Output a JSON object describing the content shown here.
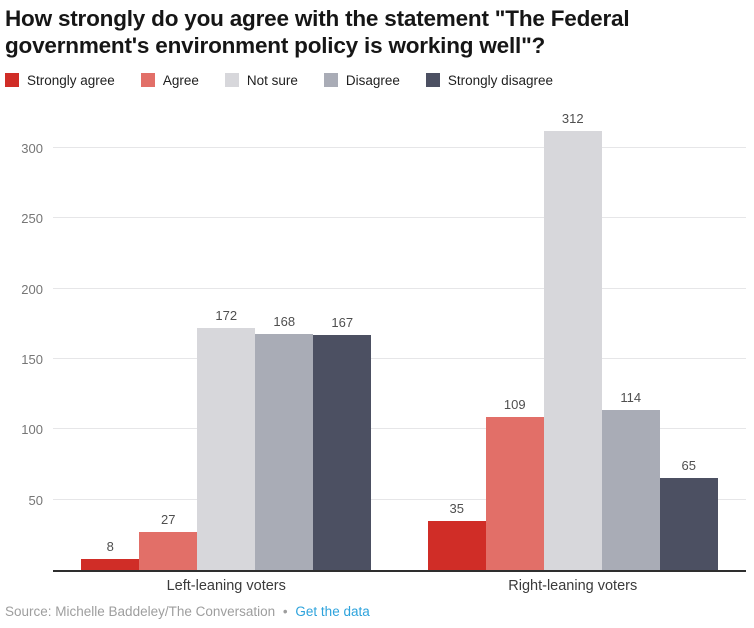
{
  "title": "How strongly do you agree with the statement \"The Federal government's environment policy is working well\"?",
  "legend": {
    "items": [
      {
        "label": "Strongly agree",
        "color": "#d02d27"
      },
      {
        "label": "Agree",
        "color": "#e26f68"
      },
      {
        "label": "Not sure",
        "color": "#d7d7db"
      },
      {
        "label": "Disagree",
        "color": "#a9acb6"
      },
      {
        "label": "Strongly disagree",
        "color": "#4c5062"
      }
    ]
  },
  "chart_data": {
    "type": "bar",
    "title": "How strongly do you agree with the statement \"The Federal government's environment policy is working well\"?",
    "categories": [
      "Left-leaning voters",
      "Right-leaning voters"
    ],
    "series": [
      {
        "name": "Strongly agree",
        "color": "#d02d27",
        "values": [
          8,
          35
        ]
      },
      {
        "name": "Agree",
        "color": "#e26f68",
        "values": [
          27,
          109
        ]
      },
      {
        "name": "Not sure",
        "color": "#d7d7db",
        "values": [
          172,
          312
        ]
      },
      {
        "name": "Disagree",
        "color": "#a9acb6",
        "values": [
          168,
          114
        ]
      },
      {
        "name": "Strongly disagree",
        "color": "#4c5062",
        "values": [
          167,
          65
        ]
      }
    ],
    "xlabel": "",
    "ylabel": "",
    "ylim": [
      0,
      330
    ],
    "yticks": [
      50,
      100,
      150,
      200,
      250,
      300
    ],
    "grid": "horizontal",
    "legend_position": "top"
  },
  "footer": {
    "source_text": "Source: Michelle Baddeley/The Conversation",
    "separator": "•",
    "link_label": "Get the data",
    "link_color": "#2ea3dc"
  }
}
